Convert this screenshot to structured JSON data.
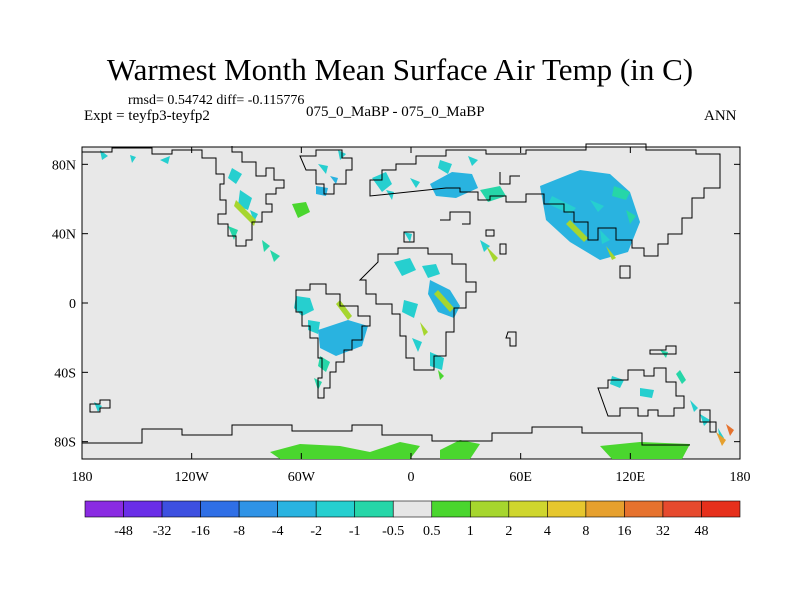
{
  "title": "Warmest Month Mean Surface Air Temp (in C)",
  "stats_line": "rmsd= 0.54742 diff= -0.115776",
  "experiment_label": "Expt = teyfp3-teyfp2",
  "case_label": "075_0_MaBP - 075_0_MaBP",
  "season_label": "ANN",
  "map": {
    "projection": "cylindrical-equidistant",
    "lon_range": [
      -180,
      180
    ],
    "lat_range": [
      -90,
      90
    ],
    "x_ticks": [
      {
        "value": -180,
        "label": "180"
      },
      {
        "value": -120,
        "label": "120W"
      },
      {
        "value": -60,
        "label": "60W"
      },
      {
        "value": 0,
        "label": "0"
      },
      {
        "value": 60,
        "label": "60E"
      },
      {
        "value": 120,
        "label": "120E"
      },
      {
        "value": 180,
        "label": "180"
      }
    ],
    "y_ticks": [
      {
        "value": 80,
        "label": "80N"
      },
      {
        "value": 40,
        "label": "40N"
      },
      {
        "value": 0,
        "label": "0"
      },
      {
        "value": -40,
        "label": "40S"
      },
      {
        "value": -80,
        "label": "80S"
      }
    ],
    "background_color": "#e8e8e8"
  },
  "colorbar": {
    "labels": [
      "-48",
      "-32",
      "-16",
      "-8",
      "-4",
      "-2",
      "-1",
      "-0.5",
      "0.5",
      "1",
      "2",
      "4",
      "8",
      "16",
      "32",
      "48"
    ],
    "colors": [
      "#8a2be2",
      "#6a2ee8",
      "#3d50e0",
      "#2f6fe6",
      "#2f93e6",
      "#29b3e0",
      "#26cfcf",
      "#26d6a8",
      "#e6e6e6",
      "#4ad62e",
      "#a6d62e",
      "#cfd62e",
      "#e6c72e",
      "#e6a02e",
      "#e6722e",
      "#e64a2e",
      "#e6301c"
    ]
  }
}
